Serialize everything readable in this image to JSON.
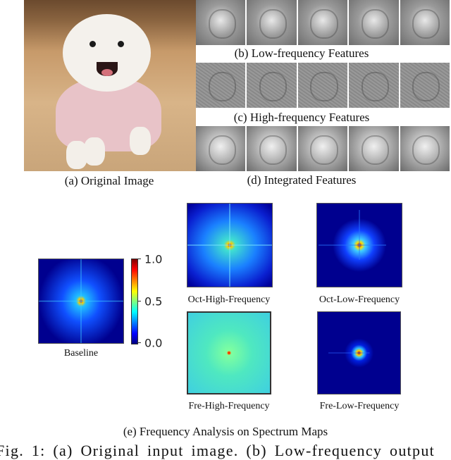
{
  "panels": {
    "a_caption": "(a) Original Image",
    "b_caption": "(b) Low-frequency Features",
    "c_caption": "(c) High-frequency Features",
    "d_caption": "(d) Integrated Features",
    "e_caption": "(e) Frequency Analysis on Spectrum Maps"
  },
  "spectrum_maps": {
    "baseline": "Baseline",
    "oct_high": "Oct-High-Frequency",
    "oct_low": "Oct-Low-Frequency",
    "fre_high": "Fre-High-Frequency",
    "fre_low": "Fre-Low-Frequency"
  },
  "colorbar": {
    "ticks": [
      "1.0",
      "0.5",
      "0.0"
    ],
    "range": [
      0.0,
      1.0
    ]
  },
  "figure_caption": "Fig. 1: (a) Original input image. (b) Low-frequency output"
}
